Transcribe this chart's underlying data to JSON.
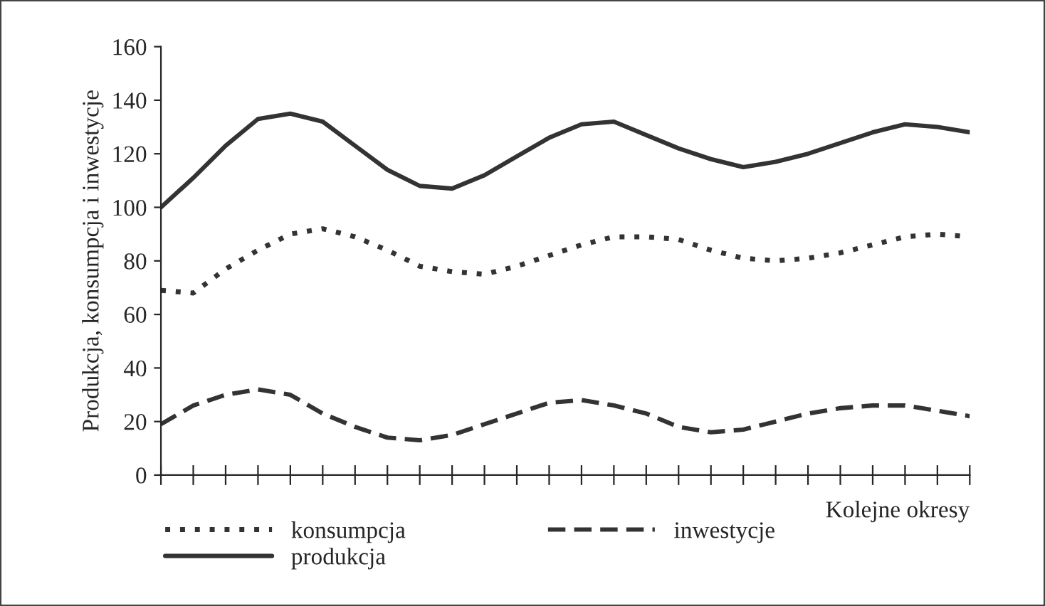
{
  "chart_data": {
    "type": "line",
    "ylabel": "Produkcja, konsumpcja i inwestycje",
    "xlabel": "Kolejne okresy",
    "categories": [
      null,
      null,
      null,
      null,
      null,
      null,
      null,
      null,
      null,
      null,
      null,
      null,
      null,
      null,
      null,
      null,
      null,
      null,
      null,
      null,
      null,
      null,
      null,
      null,
      null,
      null
    ],
    "ylim": [
      0,
      160
    ],
    "yticks": [
      0,
      20,
      40,
      60,
      80,
      100,
      120,
      140,
      160
    ],
    "grid": false,
    "legend": "bottom",
    "series": [
      {
        "name": "konsumpcja",
        "color": "#333333",
        "line_style": "dotted",
        "values": [
          69,
          68,
          77,
          84,
          90,
          92,
          89,
          84,
          78,
          76,
          75,
          78,
          82,
          86,
          89,
          89,
          88,
          84,
          81,
          80,
          81,
          83,
          86,
          89,
          90,
          89
        ]
      },
      {
        "name": "inwestycje",
        "color": "#333333",
        "line_style": "dashed",
        "values": [
          19,
          26,
          30,
          32,
          30,
          23,
          18,
          14,
          13,
          15,
          19,
          23,
          27,
          28,
          26,
          23,
          18,
          16,
          17,
          20,
          23,
          25,
          26,
          26,
          24,
          22
        ]
      },
      {
        "name": "produkcja",
        "color": "#333333",
        "line_style": "solid",
        "values": [
          100,
          111,
          123,
          133,
          135,
          132,
          123,
          114,
          108,
          107,
          112,
          119,
          126,
          131,
          132,
          127,
          122,
          118,
          115,
          117,
          120,
          124,
          128,
          131,
          130,
          128
        ]
      }
    ]
  }
}
